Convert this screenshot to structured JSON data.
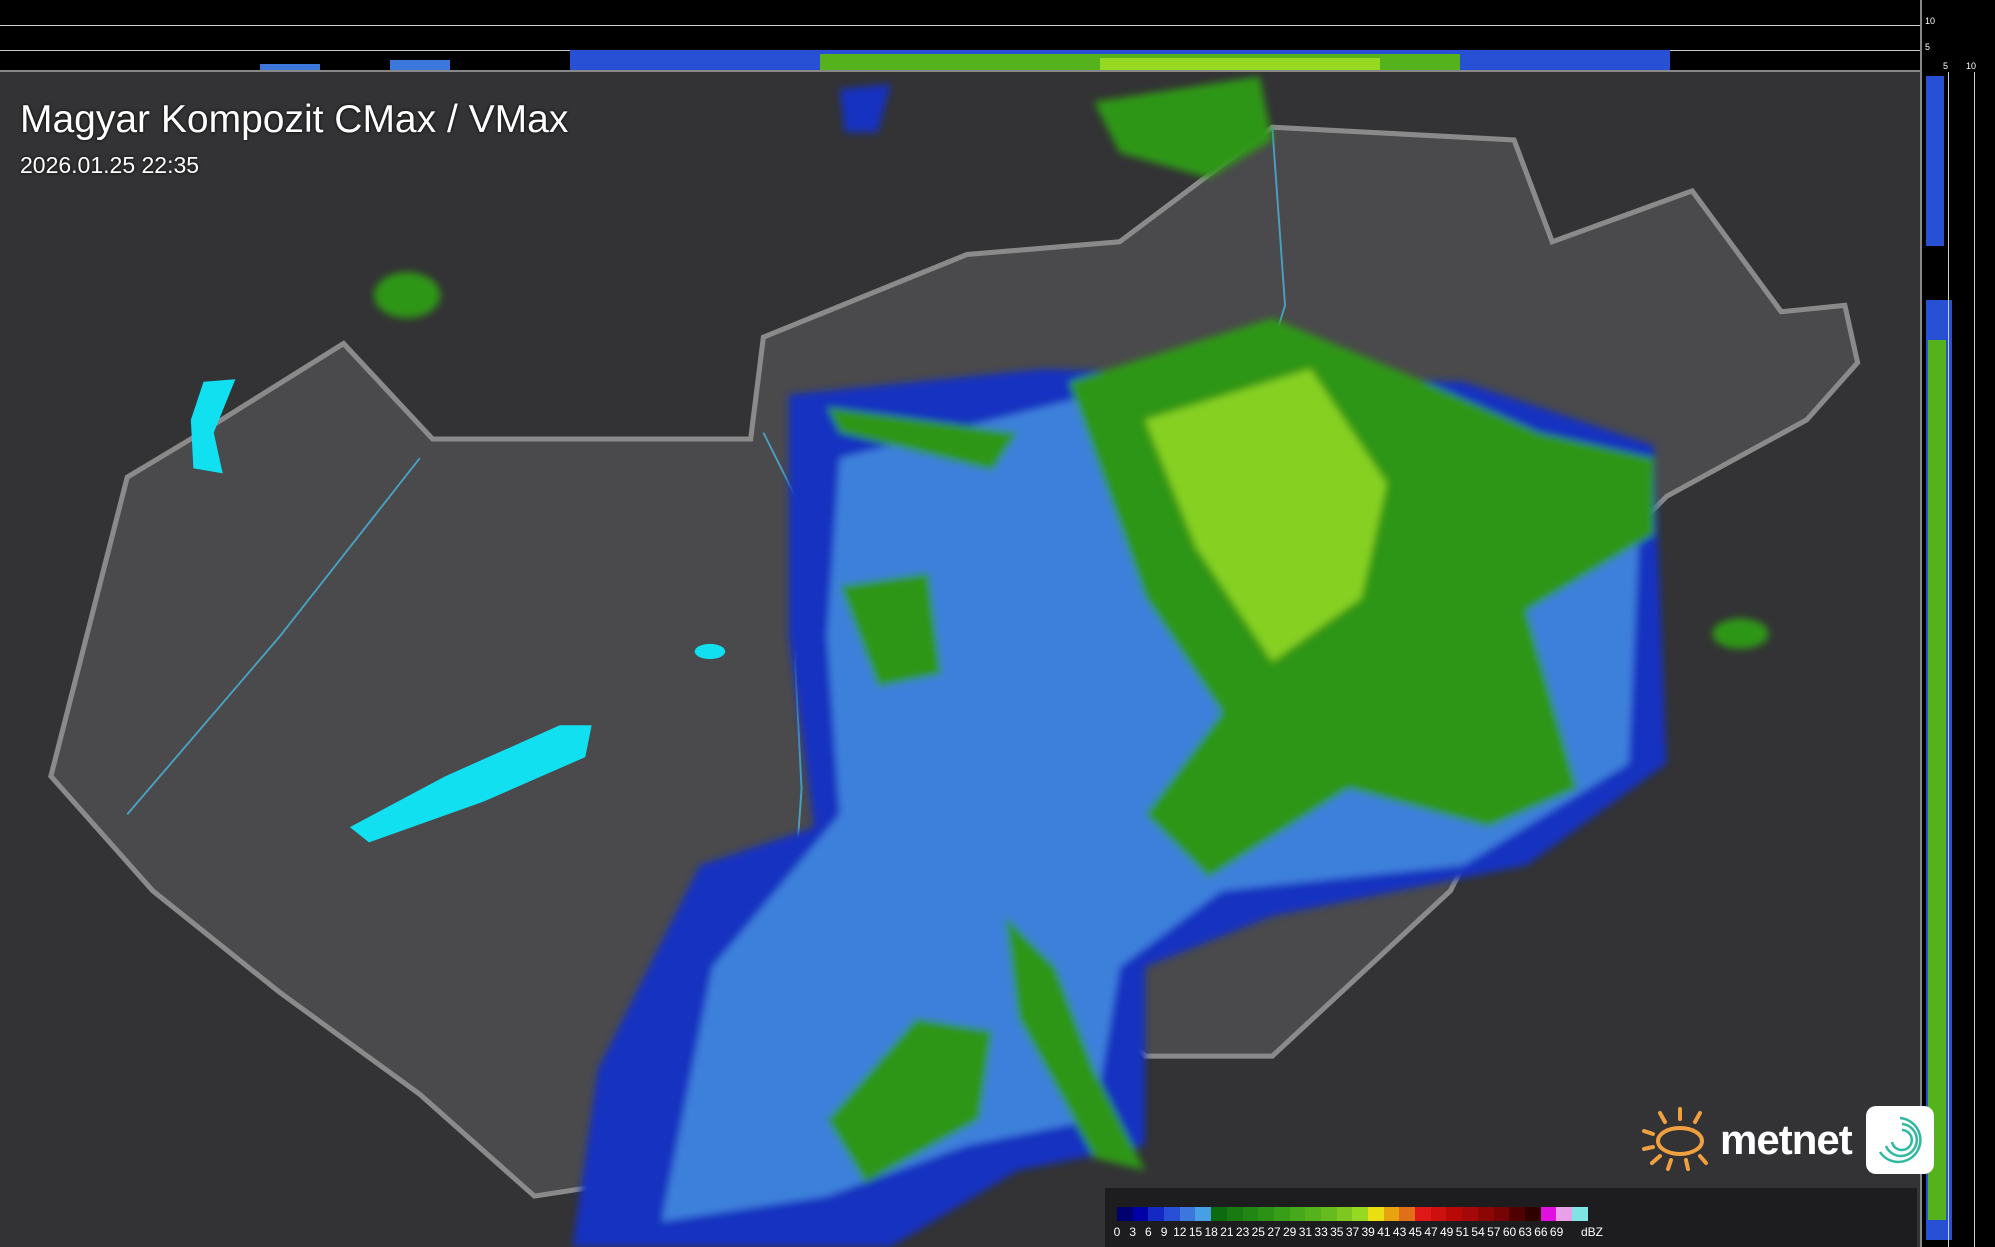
{
  "header": {
    "title": "Magyar Kompozit CMax / VMax",
    "timestamp": "2026.01.25 22:35"
  },
  "profile_axes": {
    "top": [
      "10",
      "5"
    ],
    "right": [
      "5",
      "10"
    ]
  },
  "legend": {
    "unit": "dBZ",
    "labels": [
      "0",
      "3",
      "6",
      "9",
      "12",
      "15",
      "18",
      "21",
      "23",
      "25",
      "27",
      "29",
      "31",
      "33",
      "35",
      "37",
      "39",
      "41",
      "43",
      "45",
      "47",
      "49",
      "51",
      "54",
      "57",
      "60",
      "63",
      "66",
      "69"
    ],
    "colors": [
      "#00006e",
      "#0000a8",
      "#1428c4",
      "#2850d4",
      "#3c78dc",
      "#48a0e4",
      "#0e6a0e",
      "#187a10",
      "#228614",
      "#2c9216",
      "#389e18",
      "#46a81a",
      "#56b21c",
      "#66bc1e",
      "#7ec620",
      "#96d822",
      "#e8e010",
      "#e8a410",
      "#e07018",
      "#e01818",
      "#cc1010",
      "#b80808",
      "#a40808",
      "#8c0606",
      "#760404",
      "#500000",
      "#2e0000",
      "#e010e0",
      "#e8a0e8",
      "#80e4e4"
    ]
  },
  "logo": {
    "text": "metnet",
    "sun_color": "#f0a040",
    "swirl_color": "#30b8a0"
  },
  "map_colors": {
    "terrain": "#3a3a3c",
    "country": "#4a4a4c",
    "border": "#8a8a8a",
    "rivers": "#4aa0c0",
    "lakes": "#10e0f0"
  }
}
